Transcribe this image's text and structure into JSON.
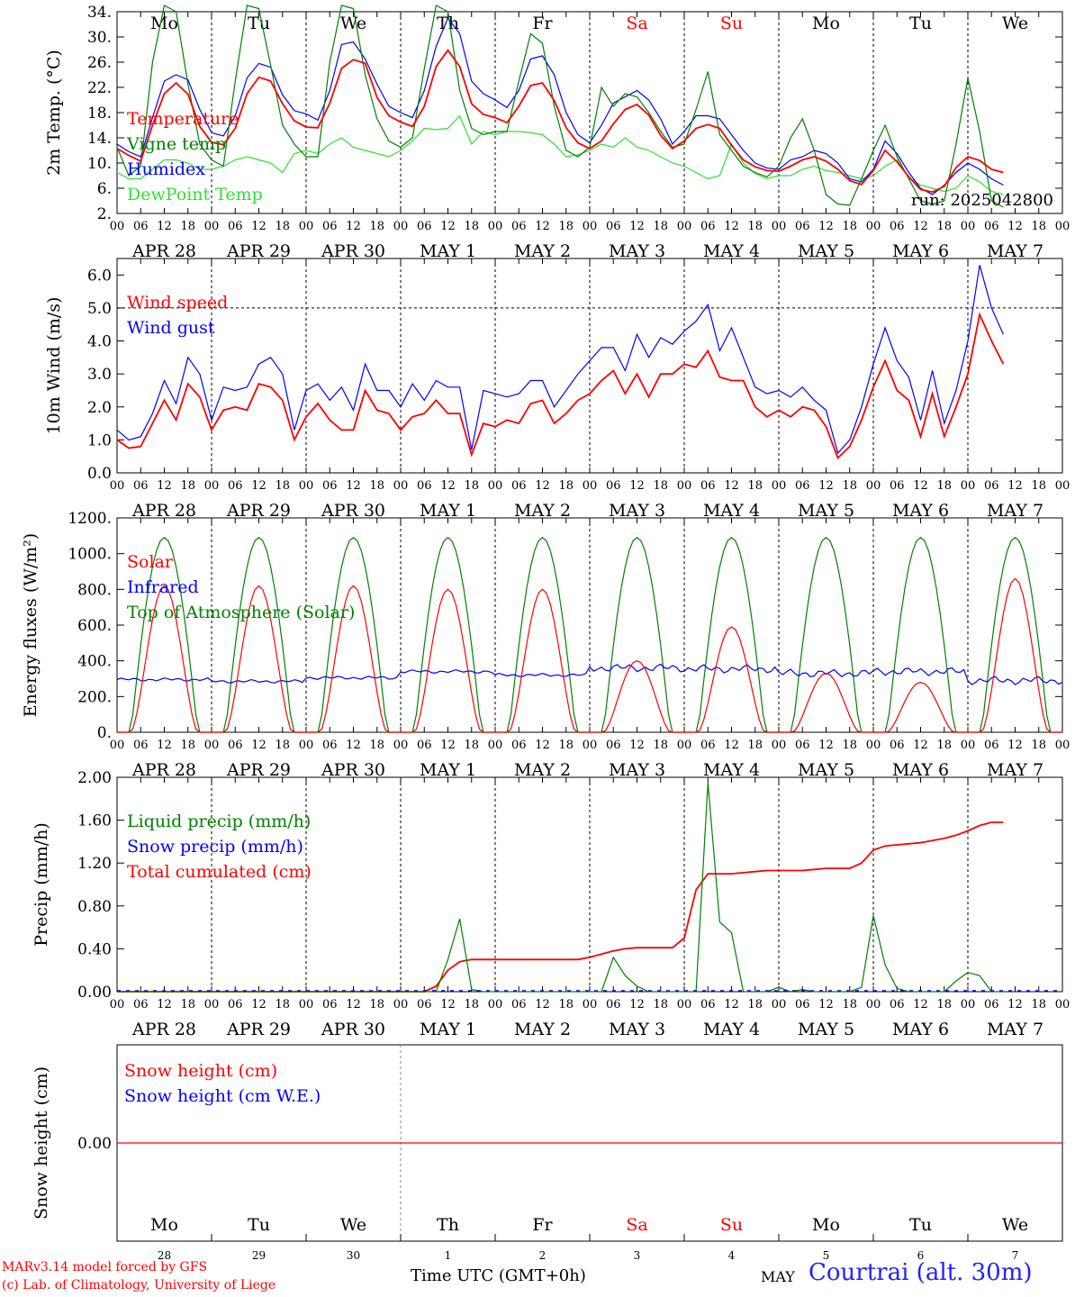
{
  "days": [
    "Mo",
    "Tu",
    "We",
    "Th",
    "Fr",
    "Sa",
    "Su",
    "Mo",
    "Tu",
    "We"
  ],
  "weekend_days": [
    5,
    6
  ],
  "dates": [
    "APR 28",
    "APR 29",
    "APR 30",
    "MAY  1",
    "MAY  2",
    "MAY  3",
    "MAY  4",
    "MAY  5",
    "MAY  6",
    "MAY  7"
  ],
  "hour_ticks": [
    "00",
    "06",
    "12",
    "18"
  ],
  "last_tick": "00",
  "bottom_day_numbers": [
    "28",
    "29",
    "30",
    "1",
    "2",
    "3",
    "4",
    "5",
    "6",
    "7"
  ],
  "month_label": "MAY",
  "run_label": "run: 2025042800",
  "footer": {
    "model": "MARv3.14 model forced by GFS",
    "credit": "(c) Lab. of Climatology, University of Liege",
    "time_label": "Time UTC (GMT+0h)",
    "station": "Courtrai (alt. 30m)"
  },
  "colors": {
    "red": "#ff0000",
    "green": "#008000",
    "blue": "#0000ff",
    "lightgreen": "#33dd33",
    "weekend": "#ff0000"
  },
  "chart_data": [
    {
      "id": "temp",
      "type": "line",
      "ylabel": "2m Temp. (°C)",
      "ylim": [
        2,
        34
      ],
      "yticks": [
        "2.",
        "6.",
        "10.",
        "14.",
        "18.",
        "22.",
        "26.",
        "30.",
        "34."
      ],
      "x_unit": "hours since APR 28 00 UTC",
      "x_step_hours": 3,
      "series": [
        {
          "name": "Temperature",
          "color": "red",
          "values": [
            12.3,
            11.2,
            10.3,
            16,
            21,
            22.7,
            20.9,
            15.8,
            13.3,
            12.9,
            15.5,
            21,
            23.6,
            23,
            19.4,
            16.7,
            15.7,
            15.6,
            19.5,
            25,
            26.4,
            25.8,
            20.4,
            17.5,
            16.5,
            15.8,
            19,
            25.3,
            27.9,
            25.3,
            19.4,
            17.7,
            17.2,
            16.4,
            19,
            22.3,
            22.7,
            19.9,
            15.6,
            13.2,
            12.3,
            13.5,
            16.2,
            18.5,
            19.3,
            17.6,
            14.4,
            12.3,
            13.5,
            15.5,
            16.1,
            15.5,
            12.8,
            10.5,
            9.4,
            8.8,
            8.7,
            9.5,
            10.5,
            11,
            10.3,
            9,
            7.2,
            6.6,
            8.8,
            12,
            10.2,
            7.8,
            5.8,
            5.4,
            6.3,
            9.3,
            11,
            10.4,
            9,
            8.5
          ]
        },
        {
          "name": "Vigne temp",
          "color": "green",
          "values": [
            12.5,
            8,
            9.5,
            26,
            35,
            34,
            22.5,
            13,
            10.5,
            9.5,
            23,
            35,
            34.5,
            25.5,
            16,
            13,
            11,
            11,
            26,
            35,
            34.5,
            24,
            17,
            13.5,
            12.5,
            14,
            25,
            35,
            34,
            21.5,
            15.5,
            14.5,
            15,
            15,
            23,
            30.5,
            29,
            19,
            12,
            11,
            12.5,
            22,
            19,
            21,
            20.5,
            18,
            15,
            12.5,
            13,
            18.5,
            24.5,
            14.5,
            12,
            9.5,
            8.5,
            7.8,
            9.5,
            14,
            17,
            12,
            5,
            3.5,
            3.3,
            7.5,
            12,
            16,
            11,
            7.5,
            4,
            3.5,
            4,
            13,
            23.5,
            15,
            4,
            3
          ]
        },
        {
          "name": "Humidex",
          "color": "blue",
          "values": [
            13,
            11.8,
            11,
            17.2,
            23,
            24,
            23.2,
            18.5,
            14.8,
            14.3,
            17.5,
            23.5,
            25.8,
            25.2,
            20.8,
            18.3,
            17.8,
            16.8,
            21.5,
            28.8,
            29.2,
            26.5,
            22.5,
            19,
            18,
            17.2,
            21.5,
            28.5,
            33,
            30.5,
            23,
            21,
            20,
            18.8,
            21.5,
            26.5,
            27,
            24,
            18,
            14.5,
            13.2,
            16,
            19.5,
            20.5,
            21.5,
            20,
            17,
            13,
            15,
            17.5,
            17.5,
            17,
            14.5,
            12,
            10,
            9.2,
            9,
            10.5,
            11,
            12,
            11.5,
            10,
            7.5,
            7,
            9,
            13.5,
            11.5,
            8.5,
            6,
            5,
            6.5,
            8.5,
            10,
            9,
            7.5,
            6.5
          ]
        },
        {
          "name": "DewPoint Temp",
          "color": "lightgreen",
          "values": [
            8.5,
            7.5,
            7.5,
            9,
            10.5,
            10.5,
            10,
            9,
            9,
            9.5,
            10.5,
            11,
            10.5,
            10,
            8.5,
            11.5,
            12,
            11.5,
            13,
            14,
            12.5,
            12,
            11.5,
            11,
            12,
            13.5,
            15.5,
            15.3,
            15.5,
            17.5,
            13,
            15,
            14.5,
            15,
            15,
            14.8,
            14.5,
            13,
            11,
            11.3,
            12,
            13,
            12.5,
            14,
            12.5,
            12,
            11,
            10,
            9.5,
            8.5,
            7.5,
            8,
            13,
            10,
            8.3,
            7.5,
            8,
            8,
            9,
            9.5,
            8.8,
            8.5,
            8,
            7.5,
            8,
            9.5,
            10.5,
            7.7,
            6.5,
            6,
            5.5,
            6,
            8,
            7,
            5.5,
            5
          ]
        }
      ]
    },
    {
      "id": "wind",
      "type": "line",
      "ylabel": "10m Wind (m/s)",
      "ylim": [
        0,
        6.5
      ],
      "yticks": [
        "0.0",
        "1.0",
        "2.0",
        "3.0",
        "4.0",
        "5.0",
        "6.0"
      ],
      "reference_line": 5.0,
      "x_unit": "hours since APR 28 00 UTC",
      "x_step_hours": 3,
      "series": [
        {
          "name": "Wind speed",
          "color": "red",
          "values": [
            1,
            0.75,
            0.8,
            1.5,
            2.2,
            1.6,
            2.7,
            2.3,
            1.3,
            1.9,
            2,
            1.9,
            2.7,
            2.6,
            2.2,
            1,
            1.7,
            2.1,
            1.6,
            1.3,
            1.3,
            2.5,
            1.9,
            1.8,
            1.3,
            1.7,
            1.8,
            2.2,
            1.8,
            1.8,
            0.55,
            1.5,
            1.4,
            1.6,
            1.5,
            2.1,
            2.2,
            1.5,
            1.8,
            2.2,
            2.4,
            2.8,
            3.1,
            2.4,
            3,
            2.3,
            3,
            3,
            3.3,
            3.2,
            3.7,
            2.9,
            2.8,
            2.8,
            2,
            1.7,
            1.9,
            1.7,
            2,
            1.9,
            1.4,
            0.45,
            0.8,
            1.6,
            2.6,
            3.4,
            2.5,
            2.2,
            1.1,
            2.4,
            1.1,
            2,
            3,
            4.8,
            4,
            3.3
          ]
        },
        {
          "name": "Wind gust",
          "color": "blue",
          "values": [
            1.3,
            1,
            1.1,
            1.8,
            2.8,
            2.1,
            3.5,
            3,
            1.6,
            2.6,
            2.5,
            2.6,
            3.3,
            3.5,
            3,
            1.3,
            2.5,
            2.7,
            2.2,
            2.6,
            1.9,
            3.3,
            2.5,
            2.5,
            2,
            2.7,
            2.2,
            2.8,
            2.6,
            2.6,
            0.7,
            2.5,
            2.4,
            2.3,
            2.4,
            2.8,
            2.8,
            2,
            2.5,
            3,
            3.4,
            3.8,
            3.8,
            3.1,
            4.2,
            3.5,
            4.1,
            3.9,
            4.3,
            4.6,
            5.1,
            3.7,
            4.4,
            3.5,
            2.6,
            2.4,
            2.5,
            2.3,
            2.6,
            2.2,
            1.9,
            0.6,
            1,
            2,
            3.3,
            4.4,
            3.4,
            2.9,
            1.6,
            3.1,
            1.5,
            2.5,
            4,
            6.3,
            5,
            4.2
          ]
        }
      ]
    },
    {
      "id": "flux",
      "type": "line",
      "ylabel": "Energy fluxes (W/m²)",
      "ylim": [
        0,
        1200
      ],
      "yticks": [
        "0.",
        "200.",
        "400.",
        "600.",
        "800.",
        "1000.",
        "1200."
      ],
      "x_unit": "hours since APR 28 00 UTC",
      "x_step_hours": 3,
      "solar_peaks": [
        820,
        820,
        820,
        800,
        800,
        400,
        590,
        330,
        280,
        860
      ],
      "infrared_mean": [
        295,
        285,
        305,
        340,
        320,
        360,
        355,
        330,
        340,
        290
      ],
      "toa_peak": 1090,
      "series": [
        {
          "name": "Solar",
          "color": "red"
        },
        {
          "name": "Infrared",
          "color": "blue"
        },
        {
          "name": "Top of Atmosphere (Solar)",
          "color": "green"
        }
      ]
    },
    {
      "id": "precip",
      "type": "line",
      "ylabel": "Precip (mm/h)",
      "ylim": [
        0,
        2.0
      ],
      "yticks": [
        "0.00",
        "0.40",
        "0.80",
        "1.20",
        "1.60",
        "2.00"
      ],
      "x_unit": "hours since APR 28 00 UTC",
      "x_step_hours": 3,
      "series": [
        {
          "name": "Liquid precip (mm/h)",
          "color": "green",
          "values": [
            0,
            0,
            0,
            0,
            0,
            0,
            0,
            0,
            0,
            0,
            0,
            0,
            0,
            0,
            0,
            0,
            0,
            0,
            0,
            0,
            0,
            0,
            0,
            0,
            0,
            0,
            0,
            0,
            0.3,
            0.68,
            0.02,
            0,
            0,
            0,
            0,
            0,
            0,
            0,
            0,
            0,
            0,
            0,
            0.32,
            0.15,
            0.05,
            0,
            0,
            0,
            0,
            0,
            1.95,
            0.65,
            0.55,
            0,
            0,
            0,
            0.04,
            0,
            0.02,
            0,
            0,
            0,
            0,
            0.04,
            0.71,
            0.25,
            0.03,
            0,
            0,
            0,
            0,
            0.1,
            0.18,
            0.15,
            0,
            0
          ]
        },
        {
          "name": "Snow precip (mm/h)",
          "color": "blue",
          "values": []
        },
        {
          "name": "Total cumulated (cm)",
          "color": "red",
          "values": [
            0,
            0,
            0,
            0,
            0,
            0,
            0,
            0,
            0,
            0,
            0,
            0,
            0,
            0,
            0,
            0,
            0,
            0,
            0,
            0,
            0,
            0,
            0,
            0,
            0,
            0,
            0,
            0.05,
            0.2,
            0.28,
            0.3,
            0.3,
            0.3,
            0.3,
            0.3,
            0.3,
            0.3,
            0.3,
            0.3,
            0.3,
            0.32,
            0.35,
            0.38,
            0.4,
            0.41,
            0.41,
            0.41,
            0.41,
            0.5,
            0.95,
            1.1,
            1.1,
            1.1,
            1.11,
            1.12,
            1.13,
            1.13,
            1.13,
            1.13,
            1.14,
            1.15,
            1.15,
            1.15,
            1.2,
            1.32,
            1.36,
            1.37,
            1.38,
            1.39,
            1.41,
            1.43,
            1.46,
            1.5,
            1.55,
            1.58,
            1.58
          ]
        }
      ]
    },
    {
      "id": "snow",
      "type": "line",
      "ylabel": "Snow height (cm)",
      "ylim": [
        -1,
        1
      ],
      "yticks": [
        "0.00"
      ],
      "series": [
        {
          "name": "Snow height (cm)",
          "color": "red",
          "values": [
            0
          ]
        },
        {
          "name": "Snow height (cm W.E.)",
          "color": "blue",
          "values": [
            0
          ]
        }
      ]
    }
  ]
}
